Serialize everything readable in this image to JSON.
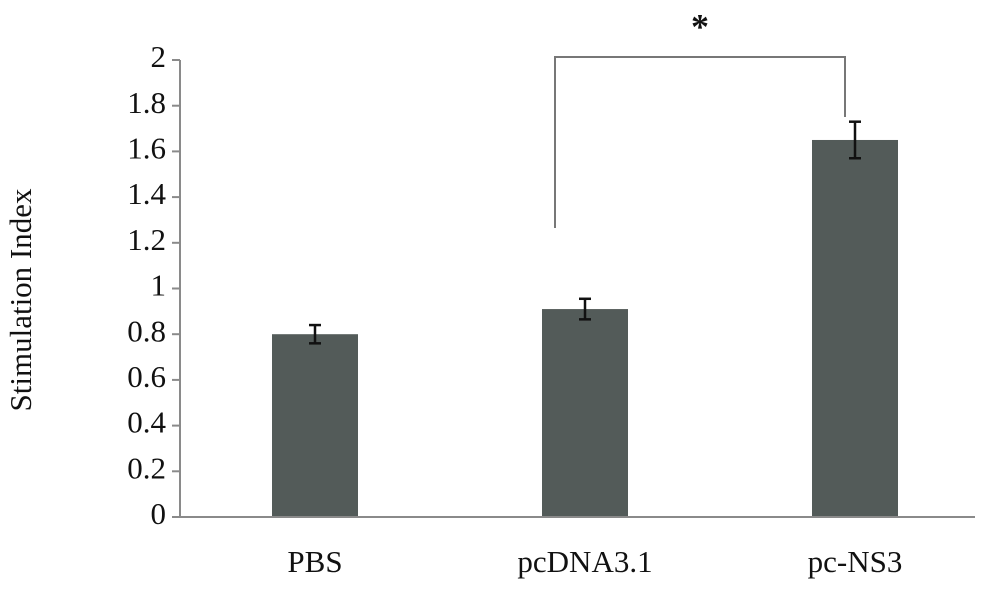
{
  "chart_data": {
    "type": "bar",
    "y_label": "Stimulation Index",
    "annotation": "*",
    "categories": [
      "PBS",
      "pcDNA3.1",
      "pc-NS3"
    ],
    "values": [
      0.8,
      0.91,
      1.65
    ],
    "errors": [
      0.04,
      0.045,
      0.08
    ],
    "color": "#535b59",
    "ylim": [
      0,
      2
    ],
    "yticks": [
      0,
      0.2,
      0.4,
      0.6,
      0.8,
      1,
      1.2,
      1.4,
      1.6,
      1.8,
      2
    ],
    "grid": false
  }
}
